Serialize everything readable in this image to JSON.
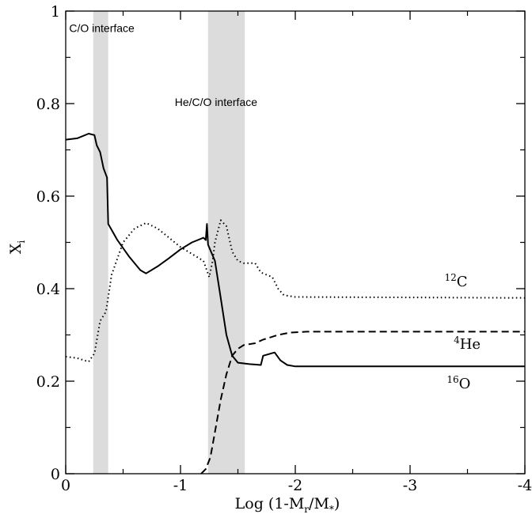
{
  "chart_data": {
    "type": "line",
    "title": "",
    "xlabel": {
      "main": "Log (1-M",
      "sub_r": "r",
      "slash": "/M",
      "sub_star": "*",
      "close": ")"
    },
    "ylabel": {
      "main": "X",
      "sub": "i"
    },
    "xlim": [
      0,
      -4
    ],
    "ylim": [
      0,
      1
    ],
    "x_ticks": [
      {
        "value": 0,
        "label": "0"
      },
      {
        "value": -1,
        "label": "-1"
      },
      {
        "value": -2,
        "label": "-2"
      },
      {
        "value": -3,
        "label": "-3"
      },
      {
        "value": -4,
        "label": "-4"
      }
    ],
    "y_ticks": [
      {
        "value": 0,
        "label": "0"
      },
      {
        "value": 0.2,
        "label": "0.2"
      },
      {
        "value": 0.4,
        "label": "0.4"
      },
      {
        "value": 0.6,
        "label": "0.6"
      },
      {
        "value": 0.8,
        "label": "0.8"
      },
      {
        "value": 1,
        "label": "1"
      }
    ],
    "grid": false,
    "shaded_regions": [
      {
        "x_from": -0.24,
        "x_to": -0.37,
        "color": "#dcdcdc"
      },
      {
        "x_from": -1.24,
        "x_to": -1.56,
        "color": "#dcdcdc"
      }
    ],
    "annotations": [
      {
        "text": "C/O interface",
        "x": -0.03,
        "y": 0.955
      },
      {
        "text": "He/C/O interface",
        "x": -0.95,
        "y": 0.795
      }
    ],
    "series": [
      {
        "name": "16O",
        "label": {
          "sup": "16",
          "sym": "O",
          "x": -3.32,
          "y": 0.185
        },
        "style": "solid",
        "points": [
          [
            0,
            0.722
          ],
          [
            -0.1,
            0.725
          ],
          [
            -0.2,
            0.735
          ],
          [
            -0.25,
            0.732
          ],
          [
            -0.27,
            0.71
          ],
          [
            -0.3,
            0.695
          ],
          [
            -0.33,
            0.66
          ],
          [
            -0.36,
            0.64
          ],
          [
            -0.37,
            0.54
          ],
          [
            -0.45,
            0.505
          ],
          [
            -0.55,
            0.47
          ],
          [
            -0.65,
            0.44
          ],
          [
            -0.7,
            0.433
          ],
          [
            -0.8,
            0.448
          ],
          [
            -0.9,
            0.466
          ],
          [
            -1.0,
            0.485
          ],
          [
            -1.1,
            0.5
          ],
          [
            -1.2,
            0.51
          ],
          [
            -1.22,
            0.505
          ],
          [
            -1.23,
            0.54
          ],
          [
            -1.24,
            0.495
          ],
          [
            -1.3,
            0.46
          ],
          [
            -1.35,
            0.38
          ],
          [
            -1.4,
            0.3
          ],
          [
            -1.45,
            0.255
          ],
          [
            -1.5,
            0.24
          ],
          [
            -1.6,
            0.237
          ],
          [
            -1.7,
            0.235
          ],
          [
            -1.72,
            0.255
          ],
          [
            -1.82,
            0.262
          ],
          [
            -1.87,
            0.245
          ],
          [
            -1.93,
            0.235
          ],
          [
            -2.0,
            0.232
          ],
          [
            -4.0,
            0.232
          ]
        ]
      },
      {
        "name": "12C",
        "label": {
          "sup": "12",
          "sym": "C",
          "x": -3.3,
          "y": 0.405
        },
        "style": "dotted",
        "points": [
          [
            0,
            0.253
          ],
          [
            -0.1,
            0.25
          ],
          [
            -0.2,
            0.242
          ],
          [
            -0.25,
            0.26
          ],
          [
            -0.3,
            0.33
          ],
          [
            -0.35,
            0.35
          ],
          [
            -0.4,
            0.43
          ],
          [
            -0.5,
            0.5
          ],
          [
            -0.6,
            0.53
          ],
          [
            -0.7,
            0.542
          ],
          [
            -0.8,
            0.53
          ],
          [
            -0.9,
            0.51
          ],
          [
            -1.0,
            0.49
          ],
          [
            -1.1,
            0.475
          ],
          [
            -1.2,
            0.46
          ],
          [
            -1.25,
            0.425
          ],
          [
            -1.28,
            0.46
          ],
          [
            -1.3,
            0.5
          ],
          [
            -1.35,
            0.548
          ],
          [
            -1.4,
            0.535
          ],
          [
            -1.45,
            0.48
          ],
          [
            -1.5,
            0.46
          ],
          [
            -1.55,
            0.455
          ],
          [
            -1.65,
            0.455
          ],
          [
            -1.7,
            0.435
          ],
          [
            -1.75,
            0.43
          ],
          [
            -1.8,
            0.425
          ],
          [
            -1.85,
            0.4
          ],
          [
            -1.9,
            0.386
          ],
          [
            -2.0,
            0.382
          ],
          [
            -4.0,
            0.38
          ]
        ]
      },
      {
        "name": "4He",
        "label": {
          "sup": "4",
          "sym": "He",
          "x": -3.38,
          "y": 0.27
        },
        "style": "dashed",
        "points": [
          [
            -1.18,
            0
          ],
          [
            -1.22,
            0.01
          ],
          [
            -1.26,
            0.035
          ],
          [
            -1.3,
            0.09
          ],
          [
            -1.35,
            0.16
          ],
          [
            -1.4,
            0.215
          ],
          [
            -1.45,
            0.255
          ],
          [
            -1.5,
            0.27
          ],
          [
            -1.55,
            0.278
          ],
          [
            -1.6,
            0.28
          ],
          [
            -1.65,
            0.282
          ],
          [
            -1.72,
            0.29
          ],
          [
            -1.8,
            0.296
          ],
          [
            -1.85,
            0.3
          ],
          [
            -1.95,
            0.305
          ],
          [
            -2.1,
            0.307
          ],
          [
            -4.0,
            0.307
          ]
        ]
      }
    ]
  }
}
